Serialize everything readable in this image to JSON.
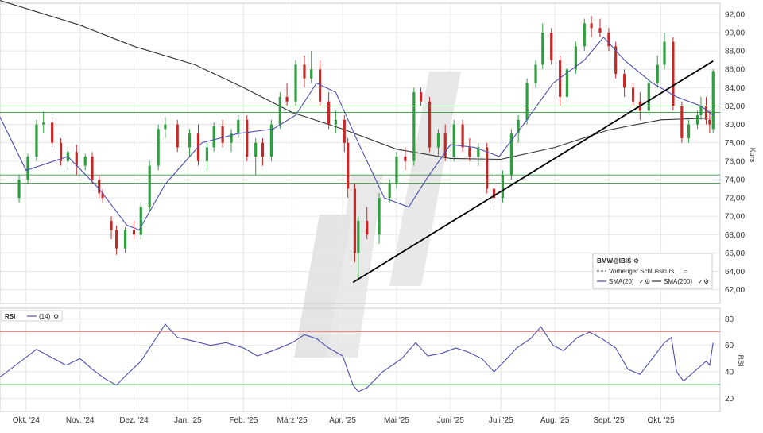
{
  "chart_data": [
    {
      "type": "candlestick",
      "ylabel": "Kurs",
      "ylim": [
        60.5,
        93.2
      ],
      "yticks": [
        "62,00",
        "64,00",
        "66,00",
        "68,00",
        "70,00",
        "72,00",
        "74,00",
        "76,00",
        "78,00",
        "80,00",
        "82,00",
        "84,00",
        "86,00",
        "88,00",
        "90,00",
        "92,00"
      ],
      "legend": {
        "title": "BMW@IBIS",
        "prev_close": "Vorheriger Schlusskurs",
        "sma20": "SMA(20)",
        "sma200": "SMA(200)",
        "position": "bottom-right"
      },
      "colors": {
        "up": "#2e9e3e",
        "down": "#c62828",
        "sma20": "#4e4eb0",
        "sma200": "#333333",
        "support": "#2e9e3e",
        "trend": "#000000"
      },
      "horizontal_lines": [
        82.0,
        81.3,
        74.5,
        73.6
      ],
      "trendline": {
        "from": [
          "2025-04-07",
          62.8
        ],
        "to": [
          "2025-10-31",
          86.9
        ]
      },
      "series": [
        {
          "name": "SMA(20)",
          "points": [
            [
              "2024-09-16",
              80.8
            ],
            [
              "2024-10-01",
              75.0
            ],
            [
              "2024-10-25",
              76.5
            ],
            [
              "2024-11-12",
              73.0
            ],
            [
              "2024-11-28",
              69.0
            ],
            [
              "2024-12-05",
              68.5
            ],
            [
              "2024-12-20",
              73.5
            ],
            [
              "2025-01-10",
              78.0
            ],
            [
              "2025-01-31",
              79.0
            ],
            [
              "2025-02-20",
              79.5
            ],
            [
              "2025-03-05",
              81.0
            ],
            [
              "2025-03-17",
              84.5
            ],
            [
              "2025-03-28",
              83.5
            ],
            [
              "2025-04-10",
              78.0
            ],
            [
              "2025-04-25",
              72.0
            ],
            [
              "2025-05-09",
              71.0
            ],
            [
              "2025-05-19",
              74.0
            ],
            [
              "2025-06-02",
              77.8
            ],
            [
              "2025-06-16",
              77.5
            ],
            [
              "2025-06-30",
              76.5
            ],
            [
              "2025-07-14",
              80.0
            ],
            [
              "2025-07-31",
              84.5
            ],
            [
              "2025-08-18",
              87.0
            ],
            [
              "2025-08-29",
              89.5
            ],
            [
              "2025-09-10",
              87.0
            ],
            [
              "2025-09-26",
              84.5
            ],
            [
              "2025-10-10",
              83.0
            ],
            [
              "2025-10-24",
              82.0
            ],
            [
              "2025-10-31",
              81.0
            ]
          ]
        },
        {
          "name": "SMA(200)",
          "points": [
            [
              "2024-09-16",
              93.5
            ],
            [
              "2024-11-01",
              90.8
            ],
            [
              "2024-12-02",
              88.5
            ],
            [
              "2025-01-06",
              86.5
            ],
            [
              "2025-02-03",
              84.0
            ],
            [
              "2025-03-03",
              81.3
            ],
            [
              "2025-04-01",
              79.5
            ],
            [
              "2025-05-02",
              77.3
            ],
            [
              "2025-06-02",
              76.3
            ],
            [
              "2025-07-01",
              76.2
            ],
            [
              "2025-08-01",
              77.5
            ],
            [
              "2025-09-01",
              79.4
            ],
            [
              "2025-10-01",
              80.5
            ],
            [
              "2025-10-31",
              80.7
            ]
          ]
        }
      ],
      "candles": [
        [
          "2024-09-27",
          72.0,
          74.5,
          71.5,
          74.0
        ],
        [
          "2024-10-02",
          74.0,
          76.8,
          73.5,
          76.5
        ],
        [
          "2024-10-07",
          76.5,
          80.5,
          76.0,
          80.0
        ],
        [
          "2024-10-11",
          80.0,
          81.4,
          79.0,
          80.2
        ],
        [
          "2024-10-16",
          80.2,
          80.8,
          77.5,
          78.0
        ],
        [
          "2024-10-21",
          78.0,
          78.5,
          75.5,
          76.0
        ],
        [
          "2024-10-25",
          76.0,
          77.5,
          75.0,
          77.0
        ],
        [
          "2024-10-30",
          77.0,
          77.8,
          74.5,
          75.5
        ],
        [
          "2024-11-04",
          75.5,
          76.8,
          75.0,
          76.5
        ],
        [
          "2024-11-08",
          76.5,
          77.0,
          73.5,
          74.0
        ],
        [
          "2024-11-12",
          74.0,
          74.5,
          72.0,
          72.5
        ],
        [
          "2024-11-14",
          72.5,
          73.0,
          71.5,
          72.0
        ],
        [
          "2024-11-19",
          69.5,
          70.0,
          67.5,
          68.5
        ],
        [
          "2024-11-22",
          68.5,
          69.0,
          65.8,
          66.5
        ],
        [
          "2024-11-27",
          66.5,
          68.8,
          66.0,
          68.5
        ],
        [
          "2024-12-02",
          68.5,
          69.5,
          67.5,
          68.0
        ],
        [
          "2024-12-06",
          68.0,
          71.5,
          67.5,
          71.0
        ],
        [
          "2024-12-11",
          71.0,
          76.0,
          70.5,
          75.5
        ],
        [
          "2024-12-16",
          75.5,
          80.0,
          75.0,
          79.5
        ],
        [
          "2024-12-20",
          79.5,
          80.8,
          78.5,
          80.0
        ],
        [
          "2024-12-27",
          80.0,
          80.5,
          77.0,
          77.5
        ],
        [
          "2025-01-03",
          77.5,
          79.5,
          76.5,
          79.0
        ],
        [
          "2025-01-08",
          79.0,
          80.0,
          75.5,
          76.0
        ],
        [
          "2025-01-13",
          76.0,
          78.0,
          75.0,
          77.5
        ],
        [
          "2025-01-17",
          77.5,
          80.2,
          77.0,
          79.8
        ],
        [
          "2025-01-22",
          79.8,
          80.5,
          77.5,
          78.0
        ],
        [
          "2025-01-27",
          78.0,
          79.5,
          77.0,
          79.0
        ],
        [
          "2025-01-31",
          79.0,
          81.0,
          78.5,
          80.5
        ],
        [
          "2025-02-05",
          80.5,
          81.0,
          76.0,
          76.5
        ],
        [
          "2025-02-10",
          76.5,
          78.5,
          74.5,
          78.0
        ],
        [
          "2025-02-14",
          78.0,
          78.5,
          75.5,
          76.5
        ],
        [
          "2025-02-19",
          76.5,
          80.5,
          76.0,
          80.0
        ],
        [
          "2025-02-24",
          80.0,
          83.5,
          79.5,
          83.0
        ],
        [
          "2025-02-28",
          83.0,
          84.5,
          82.0,
          82.5
        ],
        [
          "2025-03-05",
          82.5,
          87.0,
          82.0,
          86.5
        ],
        [
          "2025-03-10",
          86.5,
          87.5,
          84.0,
          85.0
        ],
        [
          "2025-03-14",
          85.0,
          88.0,
          84.5,
          86.0
        ],
        [
          "2025-03-19",
          86.0,
          87.0,
          82.0,
          82.5
        ],
        [
          "2025-03-24",
          82.5,
          83.5,
          79.5,
          80.0
        ],
        [
          "2025-03-28",
          80.0,
          81.5,
          79.0,
          80.5
        ],
        [
          "2025-04-02",
          80.5,
          81.0,
          77.0,
          78.0
        ],
        [
          "2025-04-04",
          78.0,
          78.5,
          72.0,
          73.0
        ],
        [
          "2025-04-08",
          73.0,
          73.5,
          65.0,
          66.0
        ],
        [
          "2025-04-10",
          66.0,
          70.0,
          63.0,
          69.5
        ],
        [
          "2025-04-15",
          69.5,
          71.0,
          67.5,
          68.0
        ],
        [
          "2025-04-22",
          68.0,
          72.5,
          67.0,
          72.0
        ],
        [
          "2025-04-28",
          72.0,
          74.0,
          71.5,
          73.5
        ],
        [
          "2025-05-02",
          73.5,
          77.0,
          73.0,
          76.5
        ],
        [
          "2025-05-07",
          76.5,
          77.5,
          75.0,
          76.0
        ],
        [
          "2025-05-12",
          76.0,
          84.0,
          75.5,
          83.5
        ],
        [
          "2025-05-16",
          83.5,
          84.0,
          82.0,
          82.5
        ],
        [
          "2025-05-21",
          82.5,
          83.0,
          77.0,
          77.5
        ],
        [
          "2025-05-26",
          77.5,
          79.5,
          76.5,
          79.0
        ],
        [
          "2025-05-30",
          79.0,
          80.0,
          76.0,
          76.5
        ],
        [
          "2025-06-04",
          76.5,
          80.5,
          76.0,
          80.0
        ],
        [
          "2025-06-09",
          80.0,
          80.5,
          77.0,
          77.5
        ],
        [
          "2025-06-13",
          77.5,
          78.5,
          76.0,
          76.5
        ],
        [
          "2025-06-18",
          76.5,
          78.0,
          75.5,
          77.5
        ],
        [
          "2025-06-23",
          77.5,
          78.0,
          72.5,
          73.0
        ],
        [
          "2025-06-27",
          73.0,
          74.5,
          71.0,
          72.0
        ],
        [
          "2025-07-02",
          72.0,
          75.0,
          71.5,
          74.5
        ],
        [
          "2025-07-07",
          74.5,
          79.5,
          74.0,
          79.0
        ],
        [
          "2025-07-11",
          79.0,
          81.0,
          78.0,
          80.5
        ],
        [
          "2025-07-16",
          80.5,
          85.0,
          80.0,
          84.5
        ],
        [
          "2025-07-21",
          84.5,
          87.0,
          84.0,
          86.5
        ],
        [
          "2025-07-25",
          86.5,
          91.0,
          86.0,
          90.0
        ],
        [
          "2025-07-30",
          90.0,
          90.5,
          86.5,
          87.0
        ],
        [
          "2025-08-04",
          87.0,
          87.5,
          82.0,
          83.0
        ],
        [
          "2025-08-08",
          83.0,
          86.5,
          82.5,
          86.0
        ],
        [
          "2025-08-13",
          86.0,
          89.0,
          85.5,
          88.5
        ],
        [
          "2025-08-18",
          88.5,
          91.5,
          88.0,
          91.0
        ],
        [
          "2025-08-22",
          91.0,
          91.8,
          89.5,
          90.5
        ],
        [
          "2025-08-27",
          90.5,
          91.5,
          89.5,
          90.0
        ],
        [
          "2025-09-01",
          90.0,
          90.5,
          88.0,
          88.5
        ],
        [
          "2025-09-05",
          88.5,
          89.0,
          85.0,
          85.5
        ],
        [
          "2025-09-10",
          85.5,
          86.0,
          83.0,
          84.0
        ],
        [
          "2025-09-15",
          84.0,
          84.5,
          82.0,
          82.5
        ],
        [
          "2025-09-19",
          82.5,
          83.5,
          80.5,
          81.5
        ],
        [
          "2025-09-24",
          81.5,
          85.0,
          81.0,
          84.5
        ],
        [
          "2025-09-29",
          84.5,
          87.5,
          84.0,
          86.5
        ],
        [
          "2025-10-03",
          86.5,
          90.0,
          86.0,
          89.0
        ],
        [
          "2025-10-08",
          89.0,
          89.5,
          81.5,
          82.0
        ],
        [
          "2025-10-13",
          82.0,
          82.5,
          78.0,
          78.5
        ],
        [
          "2025-10-17",
          78.5,
          80.5,
          78.0,
          80.0
        ],
        [
          "2025-10-22",
          80.0,
          81.5,
          79.5,
          81.0
        ],
        [
          "2025-10-24",
          81.0,
          83.0,
          80.5,
          82.0
        ],
        [
          "2025-10-27",
          82.0,
          83.0,
          80.0,
          80.5
        ],
        [
          "2025-10-29",
          80.5,
          81.5,
          79.0,
          80.0
        ],
        [
          "2025-10-31",
          79.5,
          86.0,
          79.0,
          85.8
        ]
      ]
    },
    {
      "type": "line",
      "title": "RSI",
      "legend": "(14)",
      "ylim": [
        10,
        88
      ],
      "yticks": [
        "20",
        "40",
        "60",
        "80"
      ],
      "ylabel": "RSI",
      "levels": [
        {
          "value": 70.5,
          "color": "#d9534f"
        },
        {
          "value": 30.3,
          "color": "#2e9e3e"
        }
      ],
      "series": [
        {
          "name": "(14)",
          "points": [
            [
              "2024-09-16",
              36
            ],
            [
              "2024-09-26",
              46
            ],
            [
              "2024-10-07",
              57
            ],
            [
              "2024-10-14",
              52
            ],
            [
              "2024-10-24",
              45
            ],
            [
              "2024-11-01",
              50
            ],
            [
              "2024-11-08",
              42
            ],
            [
              "2024-11-15",
              35
            ],
            [
              "2024-11-22",
              30
            ],
            [
              "2024-11-28",
              38
            ],
            [
              "2024-12-06",
              48
            ],
            [
              "2024-12-13",
              62
            ],
            [
              "2024-12-20",
              76
            ],
            [
              "2024-12-27",
              66
            ],
            [
              "2025-01-06",
              63
            ],
            [
              "2025-01-15",
              60
            ],
            [
              "2025-01-24",
              62
            ],
            [
              "2025-02-03",
              58
            ],
            [
              "2025-02-11",
              52
            ],
            [
              "2025-02-20",
              56
            ],
            [
              "2025-03-03",
              62
            ],
            [
              "2025-03-10",
              68
            ],
            [
              "2025-03-17",
              65
            ],
            [
              "2025-03-24",
              58
            ],
            [
              "2025-04-01",
              52
            ],
            [
              "2025-04-07",
              30
            ],
            [
              "2025-04-10",
              25
            ],
            [
              "2025-04-15",
              28
            ],
            [
              "2025-04-24",
              40
            ],
            [
              "2025-05-05",
              50
            ],
            [
              "2025-05-13",
              62
            ],
            [
              "2025-05-20",
              52
            ],
            [
              "2025-05-28",
              54
            ],
            [
              "2025-06-05",
              58
            ],
            [
              "2025-06-12",
              55
            ],
            [
              "2025-06-20",
              50
            ],
            [
              "2025-06-27",
              40
            ],
            [
              "2025-07-03",
              48
            ],
            [
              "2025-07-10",
              58
            ],
            [
              "2025-07-18",
              65
            ],
            [
              "2025-07-24",
              74
            ],
            [
              "2025-07-31",
              60
            ],
            [
              "2025-08-06",
              56
            ],
            [
              "2025-08-14",
              66
            ],
            [
              "2025-08-21",
              70
            ],
            [
              "2025-08-28",
              65
            ],
            [
              "2025-09-05",
              58
            ],
            [
              "2025-09-12",
              42
            ],
            [
              "2025-09-19",
              38
            ],
            [
              "2025-09-26",
              50
            ],
            [
              "2025-10-03",
              62
            ],
            [
              "2025-10-07",
              66
            ],
            [
              "2025-10-10",
              40
            ],
            [
              "2025-10-14",
              33
            ],
            [
              "2025-10-20",
              40
            ],
            [
              "2025-10-27",
              48
            ],
            [
              "2025-10-29",
              45
            ],
            [
              "2025-10-31",
              62
            ]
          ]
        }
      ]
    }
  ],
  "xaxis": {
    "labels": [
      {
        "text": "Okt. '24",
        "date": "2024-10-01"
      },
      {
        "text": "Nov. '24",
        "date": "2024-11-01"
      },
      {
        "text": "Dez. '24",
        "date": "2024-12-02"
      },
      {
        "text": "Jan. '25",
        "date": "2025-01-02"
      },
      {
        "text": "Feb. '25",
        "date": "2025-02-03"
      },
      {
        "text": "März '25",
        "date": "2025-03-03"
      },
      {
        "text": "Apr. '25",
        "date": "2025-04-01"
      },
      {
        "text": "Mai '25",
        "date": "2025-05-02"
      },
      {
        "text": "Juni '25",
        "date": "2025-06-02"
      },
      {
        "text": "Juli '25",
        "date": "2025-07-01"
      },
      {
        "text": "Aug. '25",
        "date": "2025-08-01"
      },
      {
        "text": "Sept. '25",
        "date": "2025-09-01"
      },
      {
        "text": "Okt. '25",
        "date": "2025-10-01"
      }
    ]
  }
}
